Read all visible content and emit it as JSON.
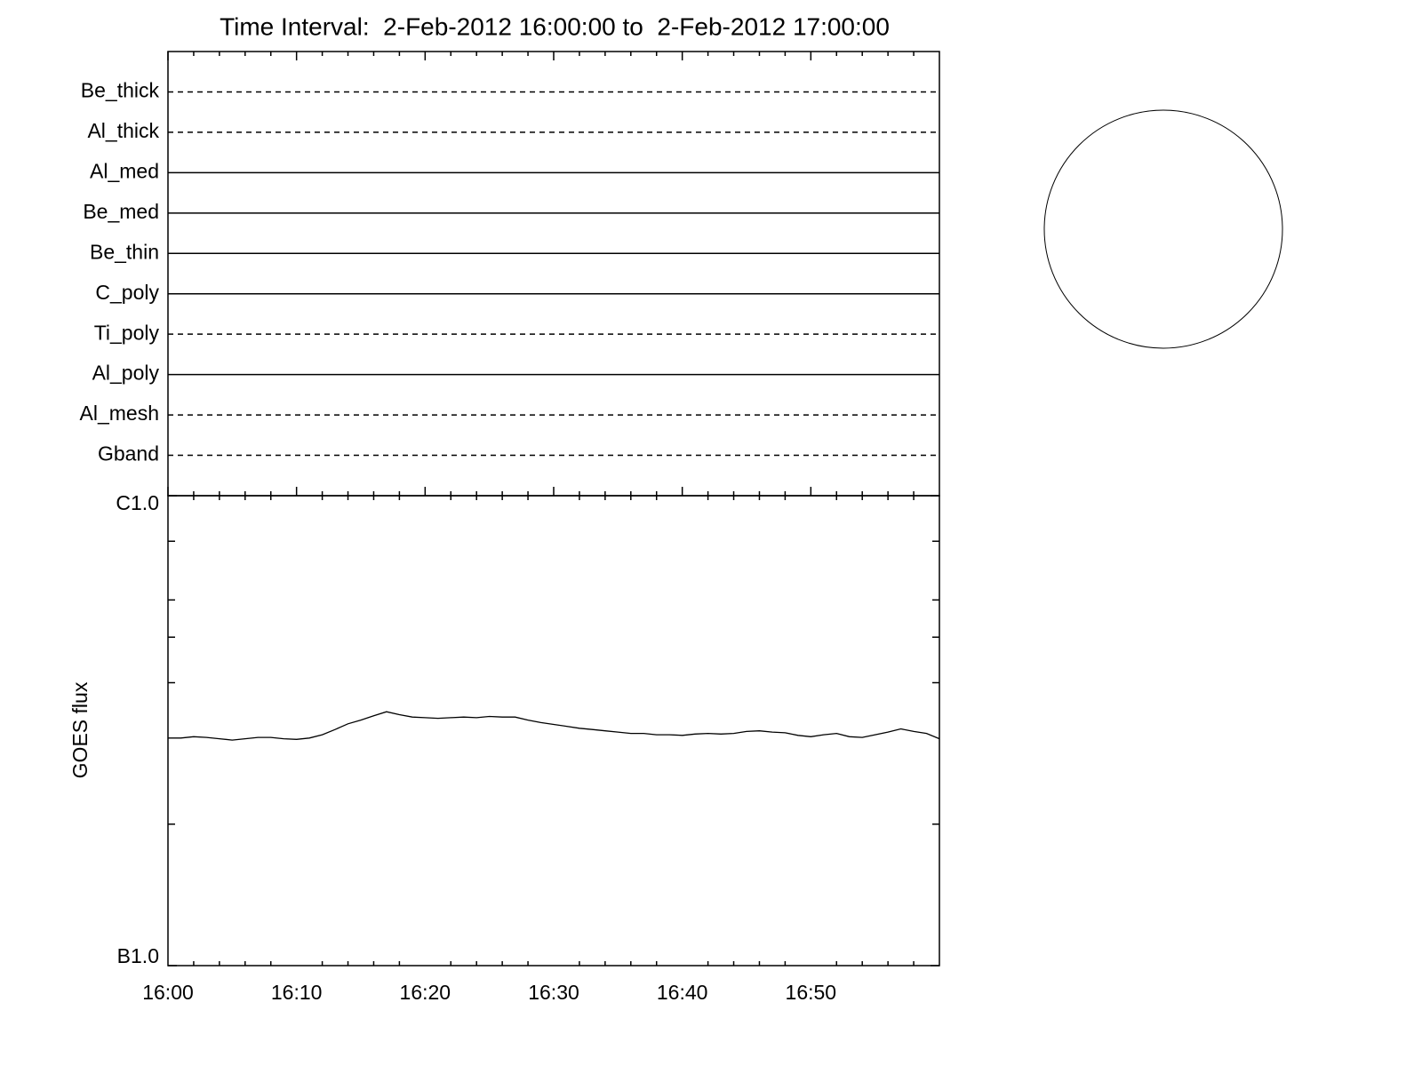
{
  "chart_data": [
    {
      "type": "timeline",
      "title": "Time Interval:  2-Feb-2012 16:00:00 to  2-Feb-2012 17:00:00",
      "categories": [
        "Be_thick",
        "Al_thick",
        "Al_med",
        "Be_med",
        "Be_thin",
        "C_poly",
        "Ti_poly",
        "Al_poly",
        "Al_mesh",
        "Gband"
      ],
      "line_styles": [
        "dashed",
        "dashed",
        "solid",
        "solid",
        "solid",
        "solid",
        "dashed",
        "solid",
        "dashed",
        "dashed"
      ],
      "color": "#000000"
    },
    {
      "type": "line",
      "y_label": "GOES flux",
      "log_y": true,
      "color": "#000000",
      "xlim": [
        0,
        60
      ],
      "xticks": [
        {
          "value": 0,
          "label": "16:00"
        },
        {
          "value": 10,
          "label": "16:10"
        },
        {
          "value": 20,
          "label": "16:20"
        },
        {
          "value": 30,
          "label": "16:30"
        },
        {
          "value": 40,
          "label": "16:40"
        },
        {
          "value": 50,
          "label": "16:50"
        }
      ],
      "xminorticks": [
        2,
        4,
        6,
        8,
        12,
        14,
        16,
        18,
        22,
        24,
        26,
        28,
        32,
        34,
        36,
        38,
        42,
        44,
        46,
        48,
        52,
        54,
        56,
        58
      ],
      "ylim": [
        1e-07,
        1e-06
      ],
      "yticks": [
        {
          "value": 1e-07,
          "label": "B1.0"
        },
        {
          "value": 1e-06,
          "label": "C1.0"
        }
      ],
      "yminorticks": [
        2e-07,
        4e-07,
        5e-07,
        6e-07,
        8e-07
      ],
      "x": [
        0,
        1,
        2,
        3,
        4,
        5,
        6,
        7,
        8,
        9,
        10,
        11,
        12,
        13,
        14,
        15,
        16,
        17,
        18,
        19,
        20,
        21,
        22,
        23,
        24,
        25,
        26,
        27,
        28,
        29,
        30,
        31,
        32,
        33,
        34,
        35,
        36,
        37,
        38,
        39,
        40,
        41,
        42,
        43,
        44,
        45,
        46,
        47,
        48,
        49,
        50,
        51,
        52,
        53,
        54,
        55,
        56,
        57,
        58,
        59,
        60
      ],
      "values": [
        3.05e-07,
        3.05e-07,
        3.07e-07,
        3.06e-07,
        3.04e-07,
        3.02e-07,
        3.04e-07,
        3.06e-07,
        3.06e-07,
        3.04e-07,
        3.03e-07,
        3.05e-07,
        3.1e-07,
        3.18e-07,
        3.27e-07,
        3.33e-07,
        3.4e-07,
        3.47e-07,
        3.42e-07,
        3.38e-07,
        3.37e-07,
        3.36e-07,
        3.37e-07,
        3.38e-07,
        3.37e-07,
        3.39e-07,
        3.38e-07,
        3.38e-07,
        3.33e-07,
        3.29e-07,
        3.26e-07,
        3.23e-07,
        3.2e-07,
        3.18e-07,
        3.16e-07,
        3.14e-07,
        3.12e-07,
        3.12e-07,
        3.1e-07,
        3.1e-07,
        3.09e-07,
        3.11e-07,
        3.12e-07,
        3.11e-07,
        3.12e-07,
        3.15e-07,
        3.16e-07,
        3.14e-07,
        3.13e-07,
        3.09e-07,
        3.07e-07,
        3.1e-07,
        3.12e-07,
        3.07e-07,
        3.06e-07,
        3.1e-07,
        3.14e-07,
        3.19e-07,
        3.15e-07,
        3.12e-07,
        3.04e-07
      ]
    }
  ]
}
